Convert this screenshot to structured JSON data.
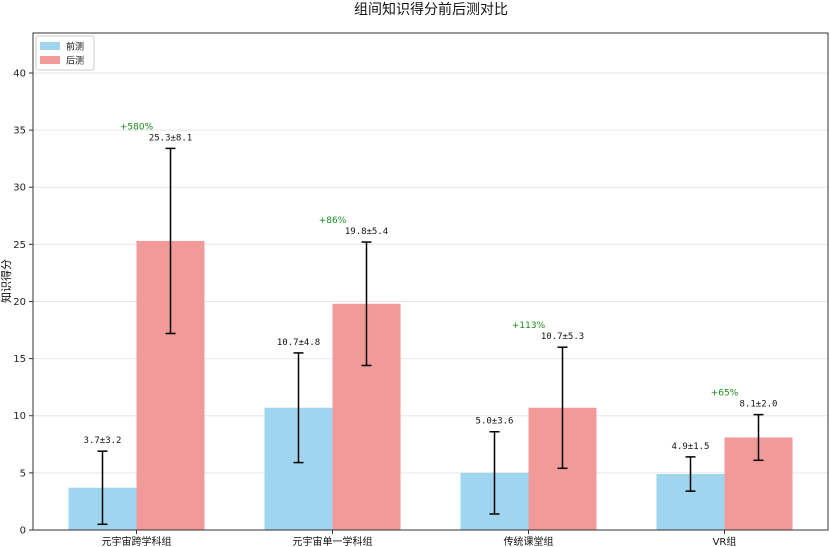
{
  "chart_data": {
    "type": "bar",
    "title": "组间知识得分前后测对比",
    "ylabel": "知识得分",
    "xlabel": "",
    "ylim": [
      0,
      43.5
    ],
    "yticks": [
      0,
      5,
      10,
      15,
      20,
      25,
      30,
      35,
      40
    ],
    "grid": "horizontal",
    "legend_position": "top-left",
    "categories": [
      "元宇宙跨学科组",
      "元宇宙单一学科组",
      "传统课堂组",
      "VR组"
    ],
    "series": [
      {
        "name": "前测",
        "color": "#9fd5ee",
        "values": [
          3.7,
          10.7,
          5.0,
          4.9
        ],
        "errors": [
          3.2,
          4.8,
          3.6,
          1.5
        ],
        "labels": [
          "3.7±3.2",
          "10.7±4.8",
          "5.0±3.6",
          "4.9±1.5"
        ]
      },
      {
        "name": "后测",
        "color": "#f29a99",
        "values": [
          25.3,
          19.8,
          10.7,
          8.1
        ],
        "errors": [
          8.1,
          5.4,
          5.3,
          2.0
        ],
        "labels": [
          "25.3±8.1",
          "19.8±5.4",
          "10.7±5.3",
          "8.1±2.0"
        ]
      }
    ],
    "improvement_labels": [
      "+580%",
      "+86%",
      "+113%",
      "+65%"
    ],
    "improvement_color": "#1a8a1a"
  }
}
